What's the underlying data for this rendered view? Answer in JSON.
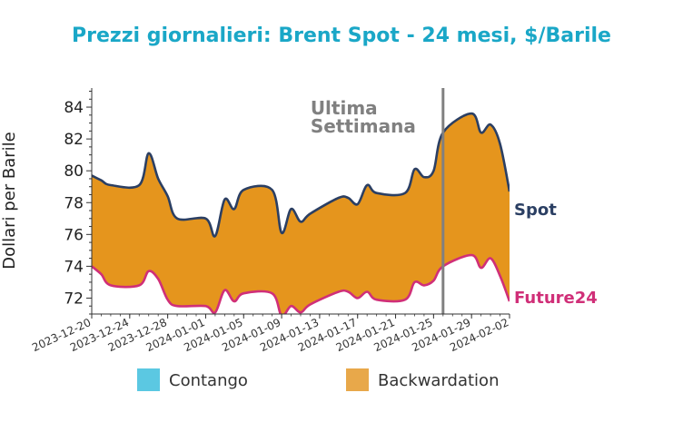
{
  "chart_data": {
    "type": "area",
    "title": "Prezzi giornalieri: Brent Spot - 24 mesi, $/Barile",
    "ylabel": "Dollari per Barile",
    "xlabel": "",
    "xlim": [
      "2023-12-20",
      "2024-02-02"
    ],
    "ylim": [
      71,
      85.2
    ],
    "yticks": [
      72,
      74,
      76,
      78,
      80,
      82,
      84
    ],
    "xticks": [
      "2023-12-20",
      "2023-12-24",
      "2023-12-28",
      "2024-01-01",
      "2024-01-05",
      "2024-01-09",
      "2024-01-13",
      "2024-01-17",
      "2024-01-21",
      "2024-01-25",
      "2024-01-29",
      "2024-02-02"
    ],
    "vline": {
      "x": "2024-01-26",
      "label_line1": "Ultima",
      "label_line2": "Settimana",
      "color": "#808080"
    },
    "series": [
      {
        "name": "Spot",
        "color": "#2b3f63",
        "x": [
          "2023-12-20",
          "2023-12-21",
          "2023-12-22",
          "2023-12-25",
          "2023-12-26",
          "2023-12-27",
          "2023-12-28",
          "2023-12-29",
          "2024-01-01",
          "2024-01-02",
          "2024-01-03",
          "2024-01-04",
          "2024-01-05",
          "2024-01-08",
          "2024-01-09",
          "2024-01-10",
          "2024-01-11",
          "2024-01-12",
          "2024-01-15",
          "2024-01-16",
          "2024-01-17",
          "2024-01-18",
          "2024-01-19",
          "2024-01-22",
          "2024-01-23",
          "2024-01-24",
          "2024-01-25",
          "2024-01-26",
          "2024-01-29",
          "2024-01-30",
          "2024-01-31",
          "2024-02-01",
          "2024-02-02"
        ],
        "values": [
          79.7,
          79.4,
          79.1,
          79.1,
          81.1,
          79.5,
          78.4,
          77.0,
          77.0,
          75.9,
          78.2,
          77.6,
          78.8,
          78.8,
          76.1,
          77.6,
          76.8,
          77.3,
          78.3,
          78.3,
          77.9,
          79.1,
          78.6,
          78.6,
          80.1,
          79.6,
          80.0,
          82.4,
          83.6,
          82.4,
          82.9,
          81.7,
          78.7
        ]
      },
      {
        "name": "Future24",
        "color": "#d02f78",
        "x": [
          "2023-12-20",
          "2023-12-21",
          "2023-12-22",
          "2023-12-25",
          "2023-12-26",
          "2023-12-27",
          "2023-12-28",
          "2023-12-29",
          "2024-01-01",
          "2024-01-02",
          "2024-01-03",
          "2024-01-04",
          "2024-01-05",
          "2024-01-08",
          "2024-01-09",
          "2024-01-10",
          "2024-01-11",
          "2024-01-12",
          "2024-01-15",
          "2024-01-16",
          "2024-01-17",
          "2024-01-18",
          "2024-01-19",
          "2024-01-22",
          "2024-01-23",
          "2024-01-24",
          "2024-01-25",
          "2024-01-26",
          "2024-01-29",
          "2024-01-30",
          "2024-01-31",
          "2024-02-01",
          "2024-02-02"
        ],
        "values": [
          74.0,
          73.5,
          72.8,
          72.8,
          73.7,
          73.2,
          71.9,
          71.5,
          71.5,
          71.1,
          72.5,
          71.8,
          72.3,
          72.3,
          70.9,
          71.5,
          71.1,
          71.6,
          72.4,
          72.4,
          72.0,
          72.4,
          71.9,
          71.9,
          73.0,
          72.8,
          73.1,
          74.0,
          74.7,
          73.9,
          74.5,
          73.4,
          71.8
        ]
      }
    ],
    "fill_colors": {
      "contango": "#5bc8e2",
      "backwardation": "#e5951d"
    },
    "legend": {
      "placement": "bottom",
      "items": [
        "Contango",
        "Backwardation"
      ],
      "colors": [
        "#5bc8e2",
        "#e8a84a"
      ]
    },
    "end_labels": {
      "spot": "Spot",
      "future": "Future24"
    },
    "grid": false
  }
}
